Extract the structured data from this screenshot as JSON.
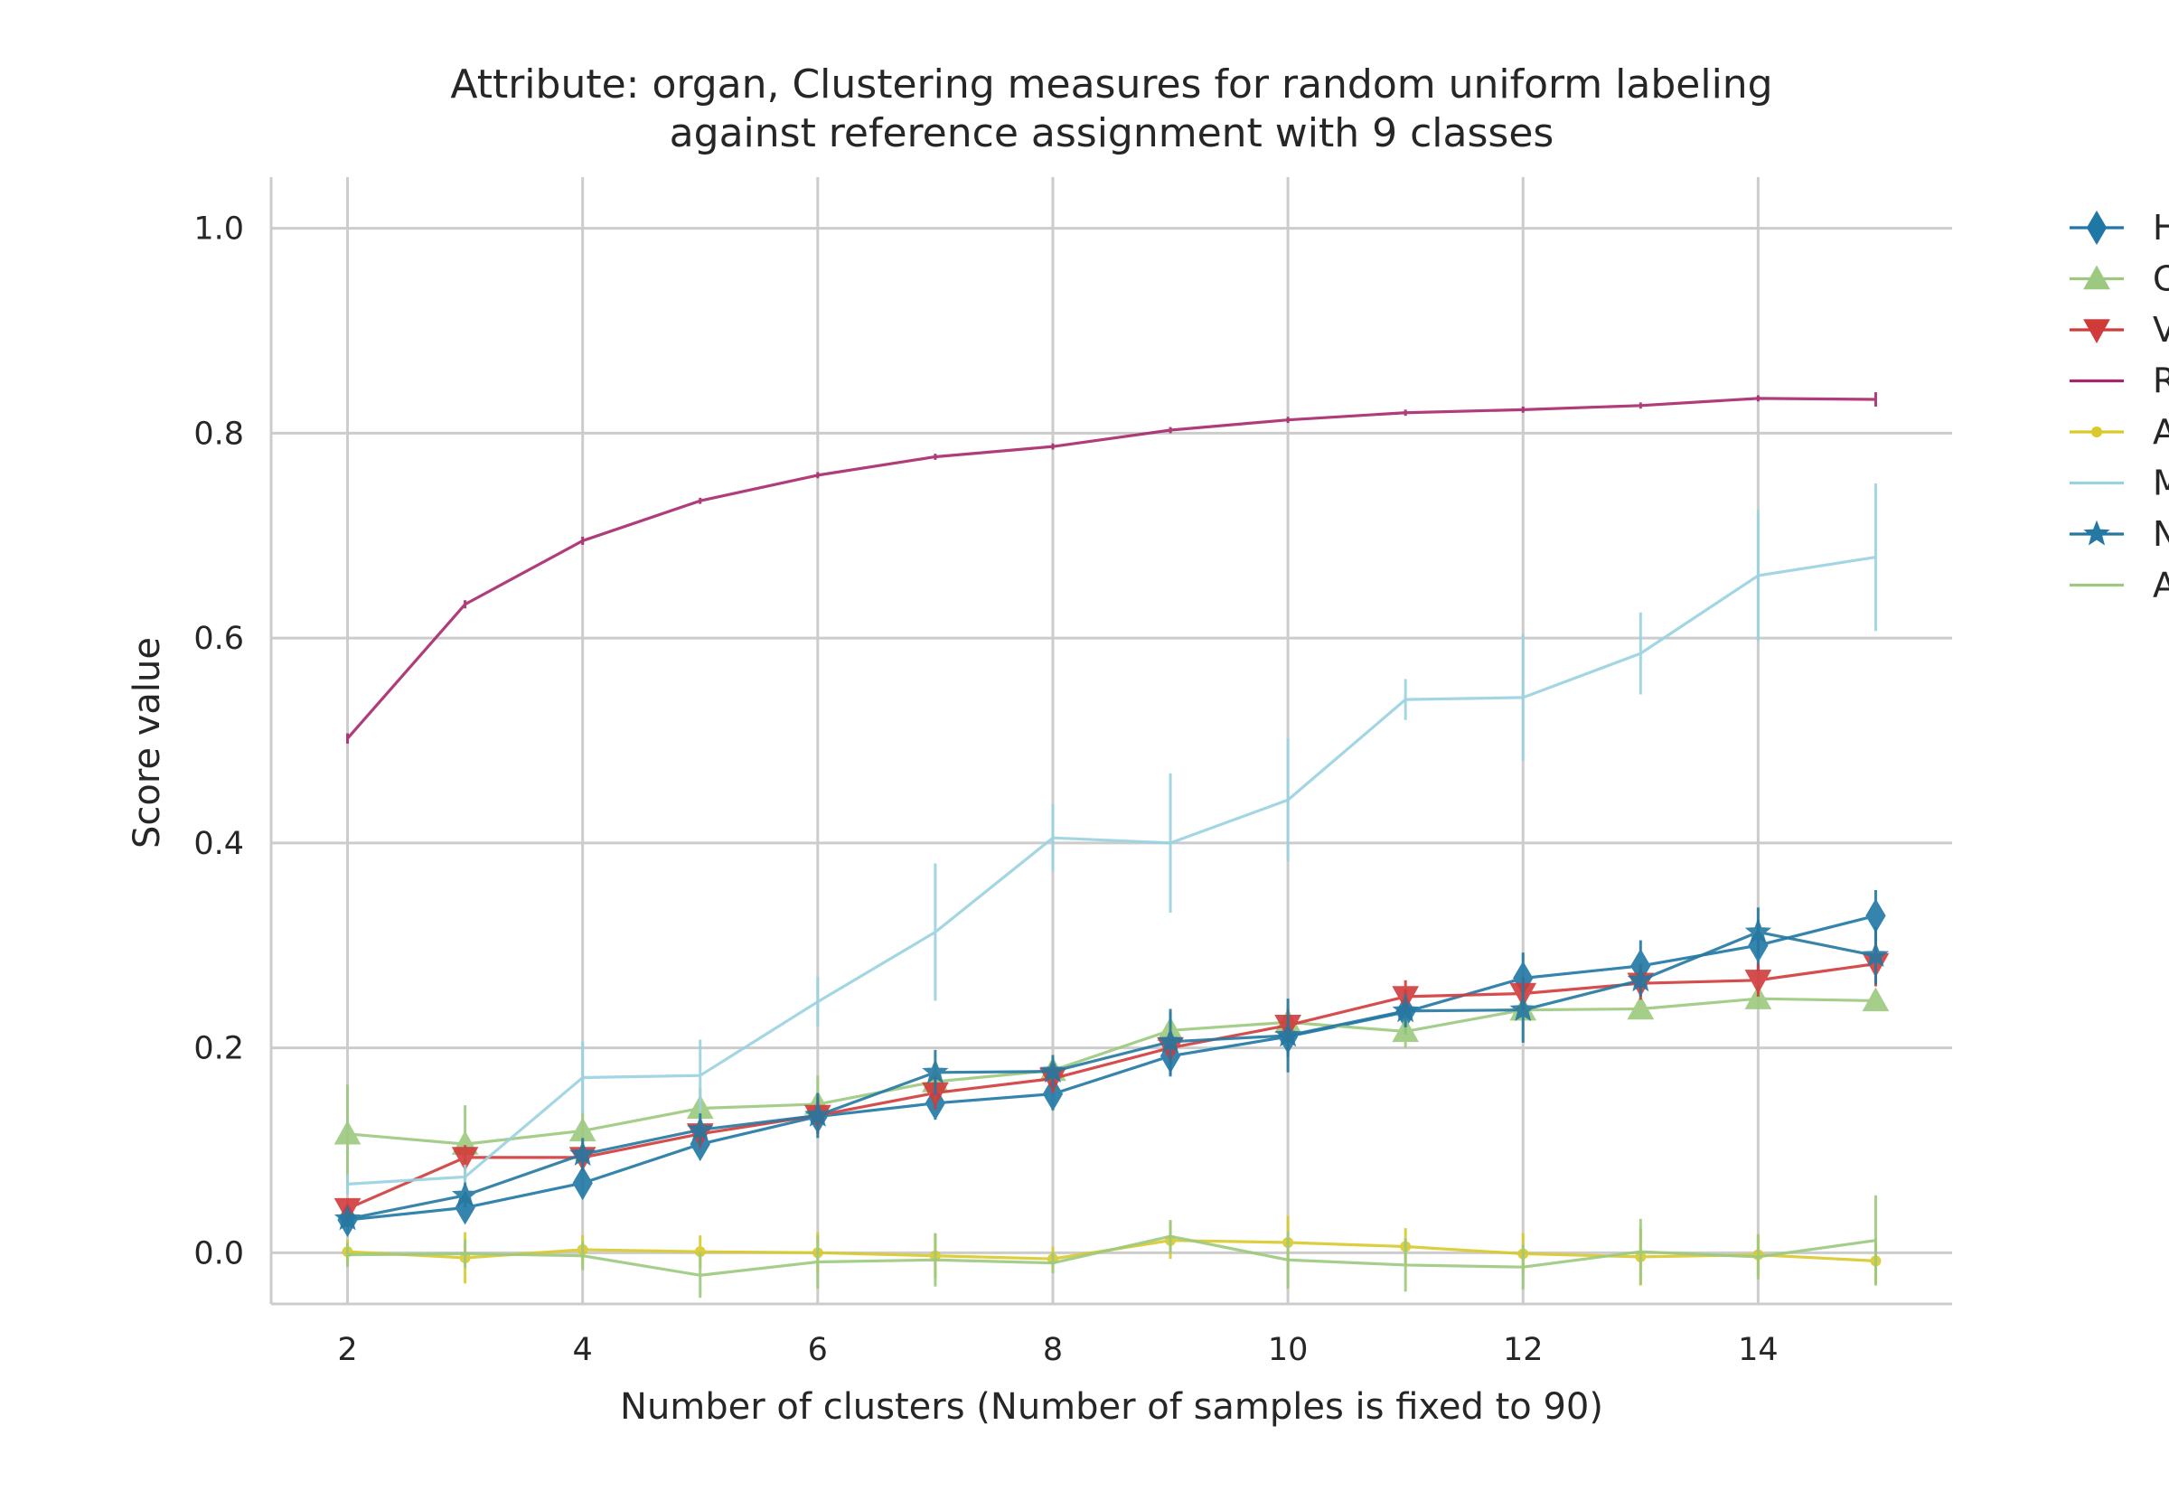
{
  "chart_data": {
    "type": "line",
    "title_line1": "Attribute: organ, Clustering measures for random uniform labeling",
    "title_line2": "against reference assignment with 9 classes",
    "xlabel": "Number of clusters (Number of samples is fixed to 90)",
    "ylabel": "Score value",
    "xlim": [
      1.35,
      15.65
    ],
    "ylim": [
      -0.05,
      1.05
    ],
    "x_ticks": [
      2,
      4,
      6,
      8,
      10,
      12,
      14
    ],
    "y_ticks": [
      0.0,
      0.2,
      0.4,
      0.6,
      0.8,
      1.0
    ],
    "y_tick_labels": [
      "0.0",
      "0.2",
      "0.4",
      "0.6",
      "0.8",
      "1.0"
    ],
    "grid": true,
    "legend_position": "right, outside plot (cropped)",
    "x": [
      2,
      3,
      4,
      5,
      6,
      7,
      8,
      9,
      10,
      11,
      12,
      13,
      14,
      15
    ],
    "series": [
      {
        "legend_label": "H",
        "color": "#1f77a6",
        "marker": "thin-diamond",
        "values": [
          0.032,
          0.044,
          0.068,
          0.106,
          0.133,
          0.146,
          0.155,
          0.192,
          0.211,
          0.235,
          0.268,
          0.28,
          0.3,
          0.329
        ],
        "errors": [
          0.008,
          0.01,
          0.012,
          0.014,
          0.016,
          0.016,
          0.016,
          0.02,
          0.02,
          0.022,
          0.025,
          0.025,
          0.025,
          0.025
        ]
      },
      {
        "legend_label": "C",
        "color": "#9cc97f",
        "marker": "triangle-up",
        "values": [
          0.116,
          0.106,
          0.119,
          0.141,
          0.145,
          0.167,
          0.178,
          0.217,
          0.225,
          0.216,
          0.237,
          0.238,
          0.248,
          0.246
        ],
        "errors": [
          0.048,
          0.038,
          0.02,
          0.02,
          0.028,
          0.02,
          0.014,
          0.018,
          0.014,
          0.016,
          0.01,
          0.01,
          0.01,
          0.01
        ]
      },
      {
        "legend_label": "V",
        "color": "#d23a3a",
        "marker": "triangle-down",
        "values": [
          0.043,
          0.093,
          0.093,
          0.116,
          0.134,
          0.156,
          0.17,
          0.2,
          0.222,
          0.25,
          0.253,
          0.263,
          0.266,
          0.282
        ],
        "errors": [
          0.008,
          0.012,
          0.012,
          0.014,
          0.018,
          0.016,
          0.014,
          0.016,
          0.016,
          0.016,
          0.016,
          0.016,
          0.016,
          0.022
        ]
      },
      {
        "legend_label": "R",
        "color": "#a8276c",
        "marker": "none",
        "values": [
          0.502,
          0.633,
          0.695,
          0.734,
          0.759,
          0.777,
          0.787,
          0.803,
          0.813,
          0.82,
          0.823,
          0.827,
          0.834,
          0.833
        ],
        "errors": [
          0.005,
          0.004,
          0.004,
          0.003,
          0.003,
          0.003,
          0.003,
          0.003,
          0.003,
          0.003,
          0.003,
          0.003,
          0.003,
          0.007
        ]
      },
      {
        "legend_label": "A",
        "color": "#d9c92a",
        "marker": "dot",
        "values": [
          0.001,
          -0.005,
          0.003,
          0.001,
          0.0,
          -0.003,
          -0.006,
          0.012,
          0.01,
          0.006,
          -0.001,
          -0.004,
          -0.002,
          -0.008
        ],
        "errors": [
          0.012,
          0.025,
          0.014,
          0.016,
          0.02,
          0.022,
          0.012,
          0.018,
          0.026,
          0.018,
          0.02,
          0.028,
          0.02,
          0.022
        ]
      },
      {
        "legend_label": "M",
        "color": "#9ad2e0",
        "marker": "none",
        "values": [
          0.067,
          0.074,
          0.171,
          0.173,
          0.245,
          0.313,
          0.405,
          0.4,
          0.442,
          0.54,
          0.542,
          0.585,
          0.661,
          0.679
        ],
        "errors": [
          0.01,
          0.012,
          0.035,
          0.035,
          0.024,
          0.067,
          0.033,
          0.068,
          0.06,
          0.02,
          0.062,
          0.04,
          0.064,
          0.072
        ]
      },
      {
        "legend_label": "N",
        "color": "#2478a1",
        "marker": "star",
        "values": [
          0.033,
          0.056,
          0.096,
          0.12,
          0.134,
          0.176,
          0.177,
          0.206,
          0.212,
          0.236,
          0.237,
          0.266,
          0.313,
          0.29
        ],
        "errors": [
          0.008,
          0.012,
          0.016,
          0.016,
          0.022,
          0.022,
          0.016,
          0.032,
          0.036,
          0.016,
          0.032,
          0.016,
          0.024,
          0.028
        ]
      },
      {
        "legend_label": "A",
        "color": "#9cc97f",
        "marker": "none",
        "values": [
          -0.002,
          -0.001,
          -0.003,
          -0.022,
          -0.009,
          -0.007,
          -0.01,
          0.016,
          -0.007,
          -0.012,
          -0.014,
          0.001,
          -0.004,
          0.012
        ],
        "errors": [
          0.012,
          0.014,
          0.014,
          0.022,
          0.026,
          0.026,
          0.01,
          0.016,
          0.028,
          0.026,
          0.022,
          0.032,
          0.022,
          0.044
        ]
      }
    ]
  }
}
